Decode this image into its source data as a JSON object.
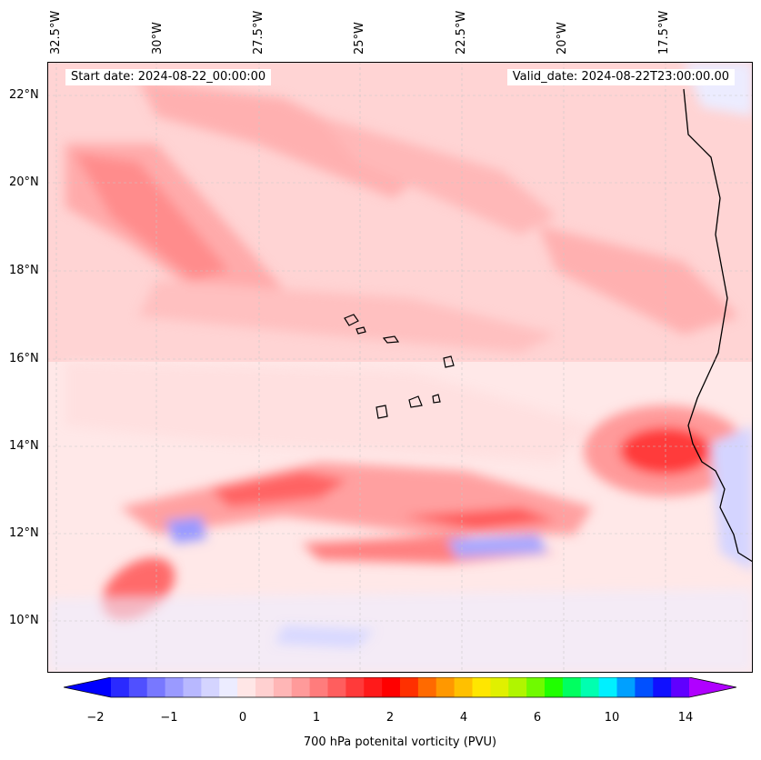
{
  "header": {
    "start_date": "Start date: 2024-08-22_00:00:00",
    "valid_date": "Valid_date: 2024-08-22T23:00:00.00"
  },
  "axes": {
    "lon_labels": [
      "32.5°W",
      "30°W",
      "27.5°W",
      "25°W",
      "22.5°W",
      "20°W",
      "17.5°W"
    ],
    "lat_labels": [
      "22°N",
      "20°N",
      "18°N",
      "16°N",
      "14°N",
      "12°N",
      "10°N"
    ]
  },
  "colorbar": {
    "label": "700 hPa potenital vorticity (PVU)",
    "ticks": [
      "−2",
      "−1",
      "0",
      "1",
      "2",
      "4",
      "6",
      "10",
      "14"
    ],
    "colors": [
      "#0000ff",
      "#2a2aff",
      "#5050ff",
      "#7878ff",
      "#9a9aff",
      "#b8b8ff",
      "#d4d4ff",
      "#ececff",
      "#ffe6e6",
      "#ffd0d0",
      "#ffb6b6",
      "#ff9a9a",
      "#ff7c7c",
      "#ff5e5e",
      "#ff3a3a",
      "#ff1a1a",
      "#ff0000",
      "#ff3000",
      "#ff6a00",
      "#ff9800",
      "#ffc000",
      "#ffe600",
      "#e0f000",
      "#b0f500",
      "#70fa00",
      "#20ff00",
      "#00ff60",
      "#00ffb0",
      "#00f0ff",
      "#00a0ff",
      "#0050ff",
      "#1010ff",
      "#6000ff",
      "#b000ff"
    ]
  },
  "map": {
    "ocean_base_color": "#ffe8e8",
    "land_base_color": "#f2f2ff",
    "coastline_color": "#000000"
  }
}
